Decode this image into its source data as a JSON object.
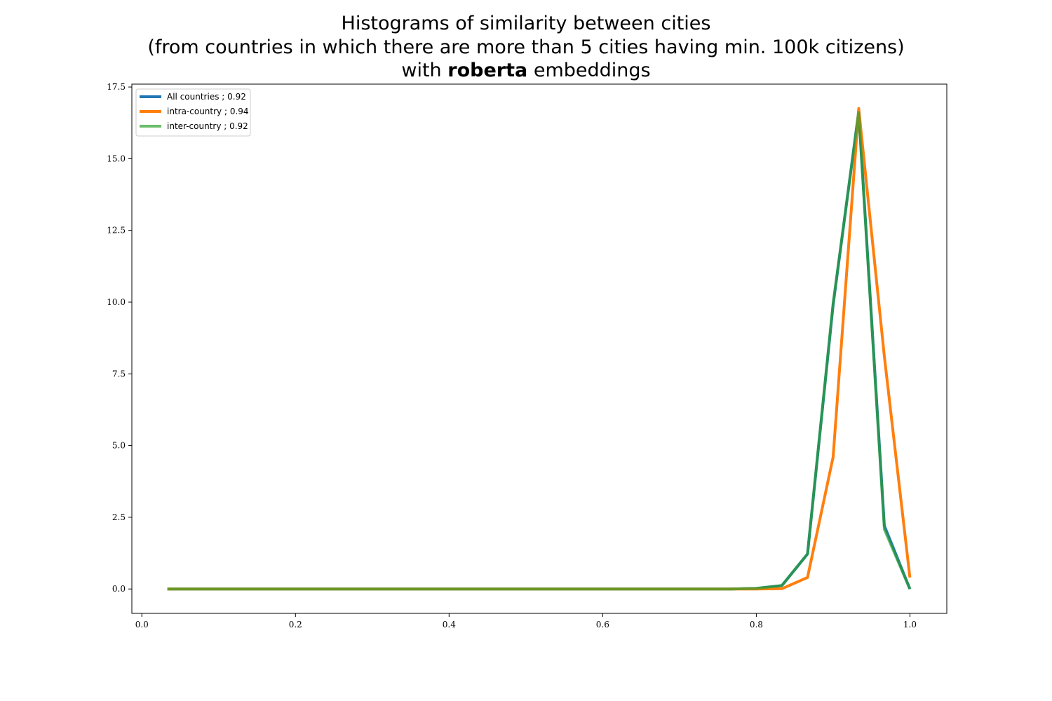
{
  "chart_data": {
    "type": "line",
    "title": {
      "line1": "Histograms of similarity between cities",
      "line2": "(from countries in which there are more than 5 cities having min. 100k citizens)",
      "line3_prefix": "with",
      "line3_bold": "roberta",
      "line3_suffix": "embeddings"
    },
    "xlabel": "",
    "ylabel": "",
    "xlim": [
      -0.013,
      1.048
    ],
    "ylim": [
      -0.85,
      17.6
    ],
    "xticks": [
      "0.0",
      "0.2",
      "0.4",
      "0.6",
      "0.8",
      "1.0"
    ],
    "yticks": [
      "0.0",
      "2.5",
      "5.0",
      "7.5",
      "10.0",
      "12.5",
      "15.0",
      "17.5"
    ],
    "grid": false,
    "legend_position": "top-left",
    "x": [
      0.0333,
      0.0667,
      0.1,
      0.1333,
      0.1667,
      0.2,
      0.2333,
      0.2667,
      0.3,
      0.3333,
      0.3667,
      0.4,
      0.4333,
      0.4667,
      0.5,
      0.5333,
      0.5667,
      0.6,
      0.6333,
      0.6667,
      0.7,
      0.7333,
      0.7667,
      0.8,
      0.8333,
      0.8667,
      0.9,
      0.9333,
      0.9667,
      1.0
    ],
    "series": [
      {
        "name": "All countries ; 0.92",
        "color": "#1f77b4",
        "values": [
          0,
          0,
          0,
          0,
          0,
          0,
          0,
          0,
          0,
          0,
          0,
          0,
          0,
          0,
          0,
          0,
          0,
          0,
          0,
          0,
          0,
          0,
          0,
          0.02,
          0.12,
          1.22,
          9.9,
          16.65,
          2.2,
          0.0
        ]
      },
      {
        "name": "intra-country ; 0.94",
        "color": "#ff7f0e",
        "values": [
          0,
          0,
          0,
          0,
          0,
          0,
          0,
          0,
          0,
          0,
          0,
          0,
          0,
          0,
          0,
          0,
          0,
          0,
          0,
          0,
          0,
          0,
          0,
          0.0,
          0.01,
          0.4,
          4.6,
          16.75,
          8.1,
          0.4
        ]
      },
      {
        "name": "inter-country ; 0.92",
        "color": "#2ca02c",
        "values": [
          0,
          0,
          0,
          0,
          0,
          0,
          0,
          0,
          0,
          0,
          0,
          0,
          0,
          0,
          0,
          0,
          0,
          0,
          0,
          0,
          0,
          0,
          0,
          0.02,
          0.12,
          1.22,
          9.95,
          16.6,
          2.08,
          0.0
        ]
      }
    ]
  }
}
